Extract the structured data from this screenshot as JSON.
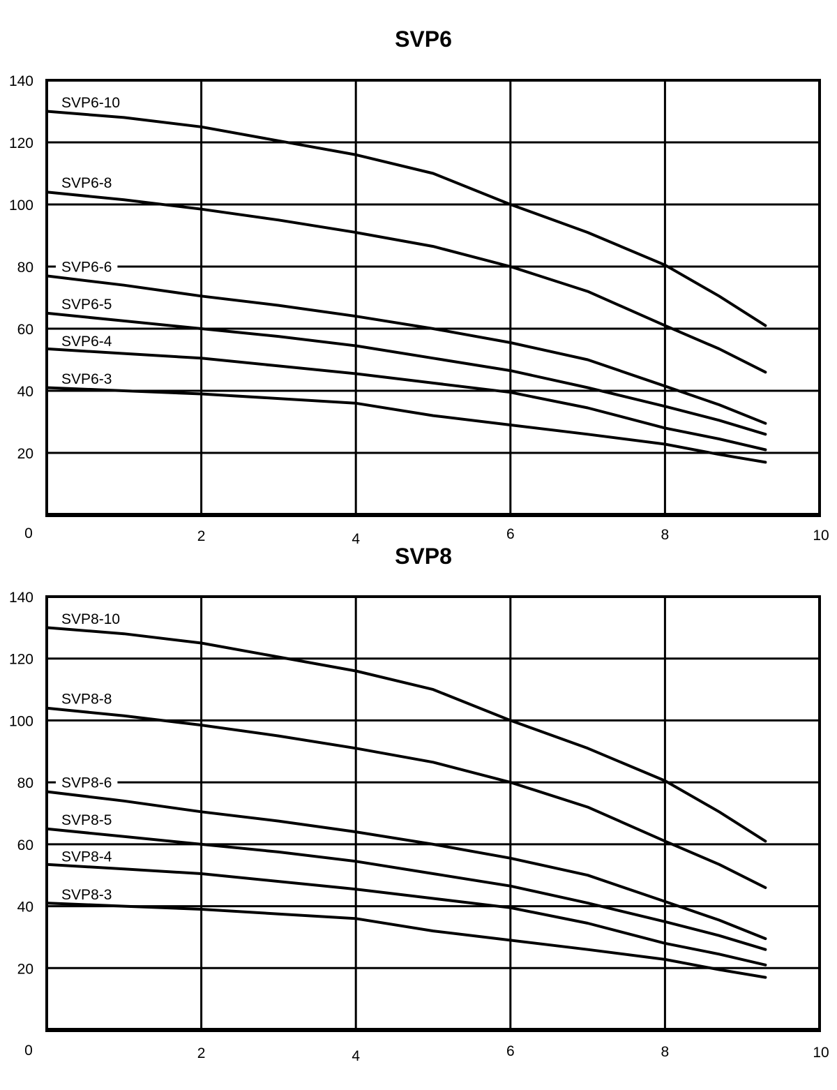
{
  "colors": {
    "background": "#ffffff",
    "line": "#000000",
    "text": "#000000"
  },
  "chart_data": [
    {
      "type": "line",
      "title": "SVP6",
      "x_range": [
        0,
        10
      ],
      "y_range": [
        0,
        140
      ],
      "x_tick_values": [
        0,
        2,
        4,
        6,
        8,
        10
      ],
      "x_tick_labels": [
        "0",
        "2",
        "4",
        "6",
        "8",
        "10"
      ],
      "y_tick_values": [
        140,
        120,
        100,
        80,
        60,
        40,
        20
      ],
      "y_tick_labels": [
        "140",
        "120",
        "100",
        "80",
        "60",
        "40",
        "20"
      ],
      "grid": "on",
      "legend": "inline-labels",
      "series": [
        {
          "name": "SVP6-10",
          "label_pos": {
            "x": 0.19,
            "y": 133.0
          },
          "points": [
            [
              0,
              130
            ],
            [
              1,
              128
            ],
            [
              2,
              125
            ],
            [
              3,
              120.5
            ],
            [
              4,
              116
            ],
            [
              5,
              110
            ],
            [
              6,
              100
            ],
            [
              7,
              91
            ],
            [
              8,
              80.5
            ],
            [
              8.7,
              70.5
            ],
            [
              9.3,
              61
            ]
          ]
        },
        {
          "name": "SVP6-8",
          "label_pos": {
            "x": 0.19,
            "y": 107.2
          },
          "points": [
            [
              0,
              104
            ],
            [
              1,
              101.5
            ],
            [
              2,
              98.5
            ],
            [
              3,
              95
            ],
            [
              4,
              91
            ],
            [
              5,
              86.5
            ],
            [
              6,
              80
            ],
            [
              7,
              72
            ],
            [
              8,
              61
            ],
            [
              8.7,
              53.5
            ],
            [
              9.3,
              46
            ]
          ]
        },
        {
          "name": "SVP6-6",
          "label_pos": {
            "x": 0.19,
            "y": 80.1
          },
          "points": [
            [
              0,
              77
            ],
            [
              1,
              74
            ],
            [
              2,
              70.5
            ],
            [
              3,
              67.5
            ],
            [
              4,
              64
            ],
            [
              5,
              60
            ],
            [
              6,
              55.5
            ],
            [
              7,
              50
            ],
            [
              8,
              41.5
            ],
            [
              8.7,
              35.5
            ],
            [
              9.3,
              29.5
            ]
          ]
        },
        {
          "name": "SVP6-5",
          "label_pos": {
            "x": 0.19,
            "y": 68.1
          },
          "points": [
            [
              0,
              65
            ],
            [
              1,
              62.5
            ],
            [
              2,
              60
            ],
            [
              3,
              57.5
            ],
            [
              4,
              54.5
            ],
            [
              5,
              50.5
            ],
            [
              6,
              46.5
            ],
            [
              7,
              41
            ],
            [
              8,
              35
            ],
            [
              8.7,
              30.5
            ],
            [
              9.3,
              26
            ]
          ]
        },
        {
          "name": "SVP6-4",
          "label_pos": {
            "x": 0.19,
            "y": 56.2
          },
          "points": [
            [
              0,
              53.5
            ],
            [
              1,
              52
            ],
            [
              2,
              50.5
            ],
            [
              3,
              48
            ],
            [
              4,
              45.5
            ],
            [
              5,
              42.5
            ],
            [
              6,
              39.5
            ],
            [
              7,
              34.5
            ],
            [
              8,
              28
            ],
            [
              8.7,
              24.5
            ],
            [
              9.3,
              21
            ]
          ]
        },
        {
          "name": "SVP6-3",
          "label_pos": {
            "x": 0.19,
            "y": 44.0
          },
          "points": [
            [
              0,
              41
            ],
            [
              1,
              40
            ],
            [
              2,
              39
            ],
            [
              3,
              37.5
            ],
            [
              4,
              36
            ],
            [
              5,
              32
            ],
            [
              6,
              29
            ],
            [
              7,
              26
            ],
            [
              8,
              22.8
            ],
            [
              8.7,
              19.5
            ],
            [
              9.3,
              17
            ]
          ]
        }
      ]
    },
    {
      "type": "line",
      "title": "SVP8",
      "x_range": [
        0,
        10
      ],
      "y_range": [
        0,
        140
      ],
      "x_tick_values": [
        0,
        2,
        4,
        6,
        8,
        10
      ],
      "x_tick_labels": [
        "0",
        "2",
        "4",
        "6",
        "8",
        "10"
      ],
      "y_tick_values": [
        140,
        120,
        100,
        80,
        60,
        40,
        20
      ],
      "y_tick_labels": [
        "140",
        "120",
        "100",
        "80",
        "60",
        "40",
        "20"
      ],
      "grid": "on",
      "legend": "inline-labels",
      "series": [
        {
          "name": "SVP8-10",
          "label_pos": {
            "x": 0.19,
            "y": 133.0
          },
          "points": [
            [
              0,
              130
            ],
            [
              1,
              128
            ],
            [
              2,
              125
            ],
            [
              3,
              120.5
            ],
            [
              4,
              116
            ],
            [
              5,
              110
            ],
            [
              6,
              100
            ],
            [
              7,
              91
            ],
            [
              8,
              80.5
            ],
            [
              8.7,
              70.5
            ],
            [
              9.3,
              61
            ]
          ]
        },
        {
          "name": "SVP8-8",
          "label_pos": {
            "x": 0.19,
            "y": 107.2
          },
          "points": [
            [
              0,
              104
            ],
            [
              1,
              101.5
            ],
            [
              2,
              98.5
            ],
            [
              3,
              95
            ],
            [
              4,
              91
            ],
            [
              5,
              86.5
            ],
            [
              6,
              80
            ],
            [
              7,
              72
            ],
            [
              8,
              61
            ],
            [
              8.7,
              53.5
            ],
            [
              9.3,
              46
            ]
          ]
        },
        {
          "name": "SVP8-6",
          "label_pos": {
            "x": 0.19,
            "y": 80.1
          },
          "points": [
            [
              0,
              77
            ],
            [
              1,
              74
            ],
            [
              2,
              70.5
            ],
            [
              3,
              67.5
            ],
            [
              4,
              64
            ],
            [
              5,
              60
            ],
            [
              6,
              55.5
            ],
            [
              7,
              50
            ],
            [
              8,
              41.5
            ],
            [
              8.7,
              35.5
            ],
            [
              9.3,
              29.5
            ]
          ]
        },
        {
          "name": "SVP8-5",
          "label_pos": {
            "x": 0.19,
            "y": 68.1
          },
          "points": [
            [
              0,
              65
            ],
            [
              1,
              62.5
            ],
            [
              2,
              60
            ],
            [
              3,
              57.5
            ],
            [
              4,
              54.5
            ],
            [
              5,
              50.5
            ],
            [
              6,
              46.5
            ],
            [
              7,
              41
            ],
            [
              8,
              35
            ],
            [
              8.7,
              30.5
            ],
            [
              9.3,
              26
            ]
          ]
        },
        {
          "name": "SVP8-4",
          "label_pos": {
            "x": 0.19,
            "y": 56.2
          },
          "points": [
            [
              0,
              53.5
            ],
            [
              1,
              52
            ],
            [
              2,
              50.5
            ],
            [
              3,
              48
            ],
            [
              4,
              45.5
            ],
            [
              5,
              42.5
            ],
            [
              6,
              39.5
            ],
            [
              7,
              34.5
            ],
            [
              8,
              28
            ],
            [
              8.7,
              24.5
            ],
            [
              9.3,
              21
            ]
          ]
        },
        {
          "name": "SVP8-3",
          "label_pos": {
            "x": 0.19,
            "y": 44.0
          },
          "points": [
            [
              0,
              41
            ],
            [
              1,
              40
            ],
            [
              2,
              39
            ],
            [
              3,
              37.5
            ],
            [
              4,
              36
            ],
            [
              5,
              32
            ],
            [
              6,
              29
            ],
            [
              7,
              26
            ],
            [
              8,
              22.8
            ],
            [
              8.7,
              19.5
            ],
            [
              9.3,
              17
            ]
          ]
        }
      ]
    }
  ]
}
